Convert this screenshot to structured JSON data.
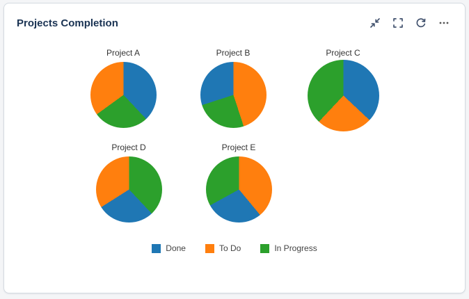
{
  "header": {
    "title": "Projects Completion",
    "actions": {
      "collapse_label": "Collapse",
      "fullscreen_label": "Fullscreen",
      "refresh_label": "Refresh",
      "menu_label": "More options"
    }
  },
  "chart_data": {
    "type": "pie",
    "title": "Projects Completion",
    "legend": [
      "Done",
      "To Do",
      "In Progress"
    ],
    "legend_position": "bottom",
    "colors": {
      "Done": "#1f77b4",
      "To Do": "#ff7f0e",
      "In Progress": "#2ca02c"
    },
    "pies": [
      {
        "title": "Project A",
        "large": false,
        "slices": [
          {
            "label": "Done",
            "value": 38
          },
          {
            "label": "In Progress",
            "value": 27
          },
          {
            "label": "To Do",
            "value": 35
          }
        ]
      },
      {
        "title": "Project B",
        "large": false,
        "slices": [
          {
            "label": "To Do",
            "value": 45
          },
          {
            "label": "In Progress",
            "value": 25
          },
          {
            "label": "Done",
            "value": 30
          }
        ]
      },
      {
        "title": "Project C",
        "large": true,
        "slices": [
          {
            "label": "Done",
            "value": 37
          },
          {
            "label": "To Do",
            "value": 25
          },
          {
            "label": "In Progress",
            "value": 38
          }
        ]
      },
      {
        "title": "Project D",
        "large": false,
        "slices": [
          {
            "label": "In Progress",
            "value": 38
          },
          {
            "label": "Done",
            "value": 28
          },
          {
            "label": "To Do",
            "value": 34
          }
        ]
      },
      {
        "title": "Project E",
        "large": false,
        "slices": [
          {
            "label": "To Do",
            "value": 39
          },
          {
            "label": "Done",
            "value": 28
          },
          {
            "label": "In Progress",
            "value": 33
          }
        ]
      }
    ]
  }
}
